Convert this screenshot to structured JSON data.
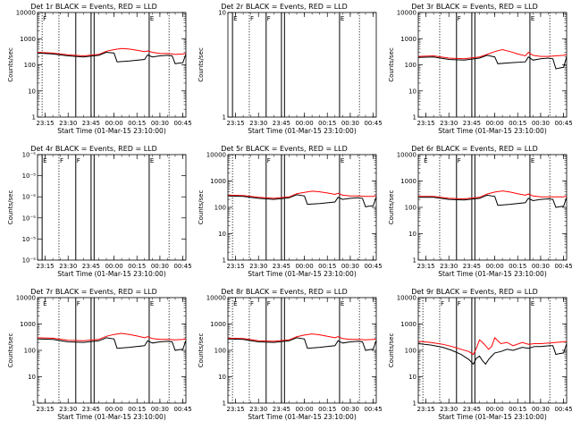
{
  "chart_data": [
    {
      "type": "line",
      "title": "Det 1r BLACK = Events, RED = LLD",
      "xlabel": "Start Time (01-Mar-15 23:10:00)",
      "ylabel": "Counts/sec",
      "xticks": [
        "23:15",
        "23:30",
        "23:45",
        "00:00",
        "00:15",
        "00:30",
        "00:45"
      ],
      "xlim_minutes": [
        0,
        97
      ],
      "yscale": "log",
      "ylim": [
        1,
        10000
      ],
      "yticks": [
        "1",
        "10",
        "100",
        "1000",
        "10000"
      ],
      "markers": [
        "F",
        "E"
      ],
      "series": [
        {
          "name": "LLD",
          "color": "#ff0000",
          "x": [
            0,
            10,
            20,
            30,
            40,
            45,
            50,
            55,
            60,
            65,
            70,
            72,
            75,
            80,
            85,
            88,
            90,
            95,
            97
          ],
          "y": [
            300,
            280,
            240,
            220,
            250,
            330,
            380,
            420,
            400,
            360,
            320,
            340,
            300,
            270,
            270,
            260,
            250,
            260,
            270
          ]
        },
        {
          "name": "Events",
          "color": "#000000",
          "x": [
            0,
            10,
            20,
            30,
            40,
            45,
            50,
            52,
            60,
            70,
            72,
            75,
            80,
            85,
            88,
            90,
            92,
            95,
            97
          ],
          "y": [
            280,
            260,
            220,
            200,
            230,
            300,
            280,
            130,
            140,
            160,
            240,
            200,
            220,
            230,
            220,
            110,
            115,
            120,
            260
          ]
        }
      ]
    },
    {
      "type": "line",
      "title": "Det 2r BLACK = Events, RED = LLD",
      "xlabel": "Start Time (01-Mar-15 23:10:00)",
      "ylabel": "Counts/sec",
      "xticks": [
        "23:15",
        "23:30",
        "23:45",
        "00:00",
        "00:15",
        "00:30",
        "00:45"
      ],
      "xlim_minutes": [
        0,
        97
      ],
      "yscale": "linear",
      "ylim": [
        1,
        10
      ],
      "yticks": [
        "1",
        "10"
      ],
      "markers": [
        "E",
        "F",
        "F",
        "E"
      ],
      "series": []
    },
    {
      "type": "line",
      "title": "Det 3r BLACK = Events, RED = LLD",
      "xlabel": "Start Time (01-Mar-15 23:10:00)",
      "ylabel": "Counts/sec",
      "xticks": [
        "23:15",
        "23:30",
        "23:45",
        "00:00",
        "00:15",
        "00:30",
        "00:45"
      ],
      "xlim_minutes": [
        0,
        97
      ],
      "yscale": "log",
      "ylim": [
        1,
        10000
      ],
      "yticks": [
        "1",
        "10",
        "100",
        "1000",
        "10000"
      ],
      "markers": [
        "F",
        "E"
      ],
      "series": [
        {
          "name": "LLD",
          "color": "#ff0000",
          "x": [
            0,
            10,
            20,
            30,
            40,
            45,
            50,
            55,
            60,
            65,
            70,
            72,
            75,
            80,
            85,
            90,
            95,
            97
          ],
          "y": [
            210,
            220,
            180,
            170,
            200,
            250,
            320,
            380,
            320,
            260,
            220,
            300,
            230,
            210,
            210,
            220,
            230,
            250
          ]
        },
        {
          "name": "Events",
          "color": "#000000",
          "x": [
            0,
            10,
            20,
            30,
            40,
            45,
            50,
            52,
            60,
            70,
            72,
            75,
            80,
            85,
            88,
            90,
            92,
            95,
            97
          ],
          "y": [
            190,
            200,
            160,
            150,
            180,
            230,
            200,
            110,
            120,
            130,
            200,
            150,
            170,
            180,
            170,
            70,
            75,
            80,
            200
          ]
        }
      ]
    },
    {
      "type": "line",
      "title": "Det 4r BLACK = Events, RED = LLD",
      "xlabel": "Start Time (01-Mar-15 23:10:00)",
      "ylabel": "Counts/sec",
      "xticks": [
        "23:15",
        "23:30",
        "23:45",
        "00:00",
        "00:15",
        "00:30",
        "00:45"
      ],
      "xlim_minutes": [
        0,
        97
      ],
      "yscale": "linear",
      "ylim": [
        0,
        1e-05
      ],
      "yticks": [
        "10⁻⁵",
        "10⁻⁵",
        "10⁻⁵",
        "10⁻⁵",
        "10⁻⁵",
        "10⁻⁵"
      ],
      "markers": [
        "E",
        "F",
        "F",
        "E"
      ],
      "series": []
    },
    {
      "type": "line",
      "title": "Det 5r BLACK = Events, RED = LLD",
      "xlabel": "Start Time (01-Mar-15 23:10:00)",
      "ylabel": "Counts/sec",
      "xticks": [
        "23:15",
        "23:30",
        "23:45",
        "00:00",
        "00:15",
        "00:30",
        "00:45"
      ],
      "xlim_minutes": [
        0,
        97
      ],
      "yscale": "log",
      "ylim": [
        1,
        10000
      ],
      "yticks": [
        "1",
        "10",
        "100",
        "1000",
        "10000"
      ],
      "markers": [
        "F",
        "E"
      ],
      "series": [
        {
          "name": "LLD",
          "color": "#ff0000",
          "x": [
            0,
            10,
            20,
            30,
            40,
            45,
            50,
            55,
            60,
            65,
            70,
            72,
            75,
            80,
            85,
            90,
            95,
            97
          ],
          "y": [
            290,
            280,
            240,
            220,
            250,
            330,
            370,
            410,
            390,
            350,
            310,
            340,
            290,
            270,
            270,
            260,
            260,
            280
          ]
        },
        {
          "name": "Events",
          "color": "#000000",
          "x": [
            0,
            10,
            20,
            30,
            40,
            45,
            50,
            52,
            60,
            70,
            72,
            75,
            80,
            85,
            88,
            90,
            92,
            95,
            97
          ],
          "y": [
            270,
            260,
            220,
            200,
            230,
            300,
            270,
            130,
            140,
            160,
            240,
            200,
            220,
            230,
            220,
            105,
            110,
            115,
            250
          ]
        }
      ]
    },
    {
      "type": "line",
      "title": "Det 6r BLACK = Events, RED = LLD",
      "xlabel": "Start Time (01-Mar-15 23:10:00)",
      "ylabel": "Counts/sec",
      "xticks": [
        "23:15",
        "23:30",
        "23:45",
        "00:00",
        "00:15",
        "00:30",
        "00:45"
      ],
      "xlim_minutes": [
        0,
        97
      ],
      "yscale": "log",
      "ylim": [
        1,
        10000
      ],
      "yticks": [
        "1",
        "10",
        "100",
        "1000",
        "10000"
      ],
      "markers": [
        "E",
        "F",
        "E"
      ],
      "series": [
        {
          "name": "LLD",
          "color": "#ff0000",
          "x": [
            0,
            10,
            20,
            30,
            40,
            45,
            50,
            55,
            60,
            65,
            70,
            72,
            75,
            80,
            85,
            90,
            95,
            97
          ],
          "y": [
            260,
            260,
            220,
            210,
            240,
            320,
            380,
            420,
            380,
            330,
            290,
            320,
            270,
            250,
            250,
            250,
            250,
            270
          ]
        },
        {
          "name": "Events",
          "color": "#000000",
          "x": [
            0,
            10,
            20,
            30,
            40,
            45,
            50,
            52,
            60,
            70,
            72,
            75,
            80,
            85,
            88,
            90,
            92,
            95,
            97
          ],
          "y": [
            240,
            240,
            200,
            190,
            220,
            290,
            260,
            120,
            130,
            150,
            220,
            180,
            200,
            210,
            200,
            100,
            105,
            110,
            240
          ]
        }
      ]
    },
    {
      "type": "line",
      "title": "Det 7r BLACK = Events, RED = LLD",
      "xlabel": "Start Time (01-Mar-15 23:10:00)",
      "ylabel": "Counts/sec",
      "xticks": [
        "23:15",
        "23:30",
        "23:45",
        "00:00",
        "00:15",
        "00:30",
        "00:45"
      ],
      "xlim_minutes": [
        0,
        97
      ],
      "yscale": "log",
      "ylim": [
        1,
        10000
      ],
      "yticks": [
        "1",
        "10",
        "100",
        "1000",
        "10000"
      ],
      "markers": [
        "E",
        "F",
        "E"
      ],
      "series": [
        {
          "name": "LLD",
          "color": "#ff0000",
          "x": [
            0,
            10,
            20,
            30,
            40,
            45,
            50,
            55,
            60,
            65,
            70,
            72,
            75,
            80,
            85,
            90,
            95,
            97
          ],
          "y": [
            300,
            290,
            240,
            230,
            260,
            340,
            400,
            440,
            400,
            350,
            300,
            330,
            280,
            260,
            260,
            250,
            260,
            270
          ]
        },
        {
          "name": "Events",
          "color": "#000000",
          "x": [
            0,
            10,
            20,
            30,
            40,
            45,
            50,
            52,
            60,
            70,
            72,
            75,
            80,
            85,
            88,
            90,
            92,
            95,
            97
          ],
          "y": [
            270,
            260,
            210,
            200,
            230,
            300,
            270,
            120,
            130,
            150,
            230,
            190,
            210,
            220,
            210,
            100,
            105,
            110,
            240
          ]
        }
      ]
    },
    {
      "type": "line",
      "title": "Det 8r BLACK = Events, RED = LLD",
      "xlabel": "Start Time (01-Mar-15 23:10:00)",
      "ylabel": "Counts/sec",
      "xticks": [
        "23:15",
        "23:30",
        "23:45",
        "00:00",
        "00:15",
        "00:30",
        "00:45"
      ],
      "xlim_minutes": [
        0,
        97
      ],
      "yscale": "log",
      "ylim": [
        1,
        10000
      ],
      "yticks": [
        "1",
        "10",
        "100",
        "1000",
        "10000"
      ],
      "markers": [
        "E",
        "F",
        "F",
        "E"
      ],
      "series": [
        {
          "name": "LLD",
          "color": "#ff0000",
          "x": [
            0,
            10,
            20,
            30,
            40,
            45,
            50,
            55,
            60,
            65,
            70,
            72,
            75,
            80,
            85,
            90,
            95,
            97
          ],
          "y": [
            290,
            280,
            230,
            220,
            250,
            330,
            380,
            420,
            390,
            340,
            300,
            330,
            280,
            260,
            260,
            250,
            260,
            270
          ]
        },
        {
          "name": "Events",
          "color": "#000000",
          "x": [
            0,
            10,
            20,
            30,
            40,
            45,
            50,
            52,
            60,
            70,
            72,
            75,
            80,
            85,
            88,
            90,
            92,
            95,
            97
          ],
          "y": [
            270,
            260,
            210,
            200,
            230,
            300,
            270,
            120,
            130,
            150,
            230,
            190,
            210,
            220,
            210,
            100,
            105,
            110,
            240
          ]
        }
      ]
    },
    {
      "type": "line",
      "title": "Det 9r BLACK = Events, RED = LLD",
      "xlabel": "Start Time (01-Mar-15 23:10:00)",
      "ylabel": "Counts/sec",
      "xticks": [
        "23:15",
        "23:30",
        "23:45",
        "00:00",
        "00:15",
        "00:30",
        "00:45"
      ],
      "xlim_minutes": [
        0,
        97
      ],
      "yscale": "log",
      "ylim": [
        1,
        10000
      ],
      "yticks": [
        "1",
        "10",
        "100",
        "1000",
        "10000"
      ],
      "markers": [
        "F",
        "F",
        "E"
      ],
      "series": [
        {
          "name": "LLD",
          "color": "#ff0000",
          "x": [
            0,
            8,
            16,
            22,
            28,
            33,
            36,
            38,
            40,
            42,
            44,
            46,
            48,
            50,
            54,
            58,
            62,
            68,
            72,
            76,
            80,
            86,
            90,
            95,
            97
          ],
          "y": [
            220,
            200,
            170,
            140,
            110,
            90,
            70,
            120,
            250,
            200,
            150,
            110,
            140,
            300,
            180,
            200,
            150,
            200,
            170,
            180,
            180,
            190,
            200,
            210,
            220
          ]
        },
        {
          "name": "Events",
          "color": "#000000",
          "x": [
            0,
            8,
            16,
            22,
            28,
            33,
            36,
            38,
            40,
            42,
            44,
            46,
            48,
            50,
            54,
            58,
            62,
            68,
            72,
            76,
            80,
            86,
            88,
            90,
            92,
            95,
            97
          ],
          "y": [
            180,
            160,
            130,
            100,
            70,
            45,
            30,
            50,
            60,
            40,
            30,
            45,
            60,
            80,
            90,
            110,
            100,
            130,
            120,
            140,
            140,
            150,
            150,
            70,
            75,
            80,
            180
          ]
        }
      ]
    }
  ]
}
